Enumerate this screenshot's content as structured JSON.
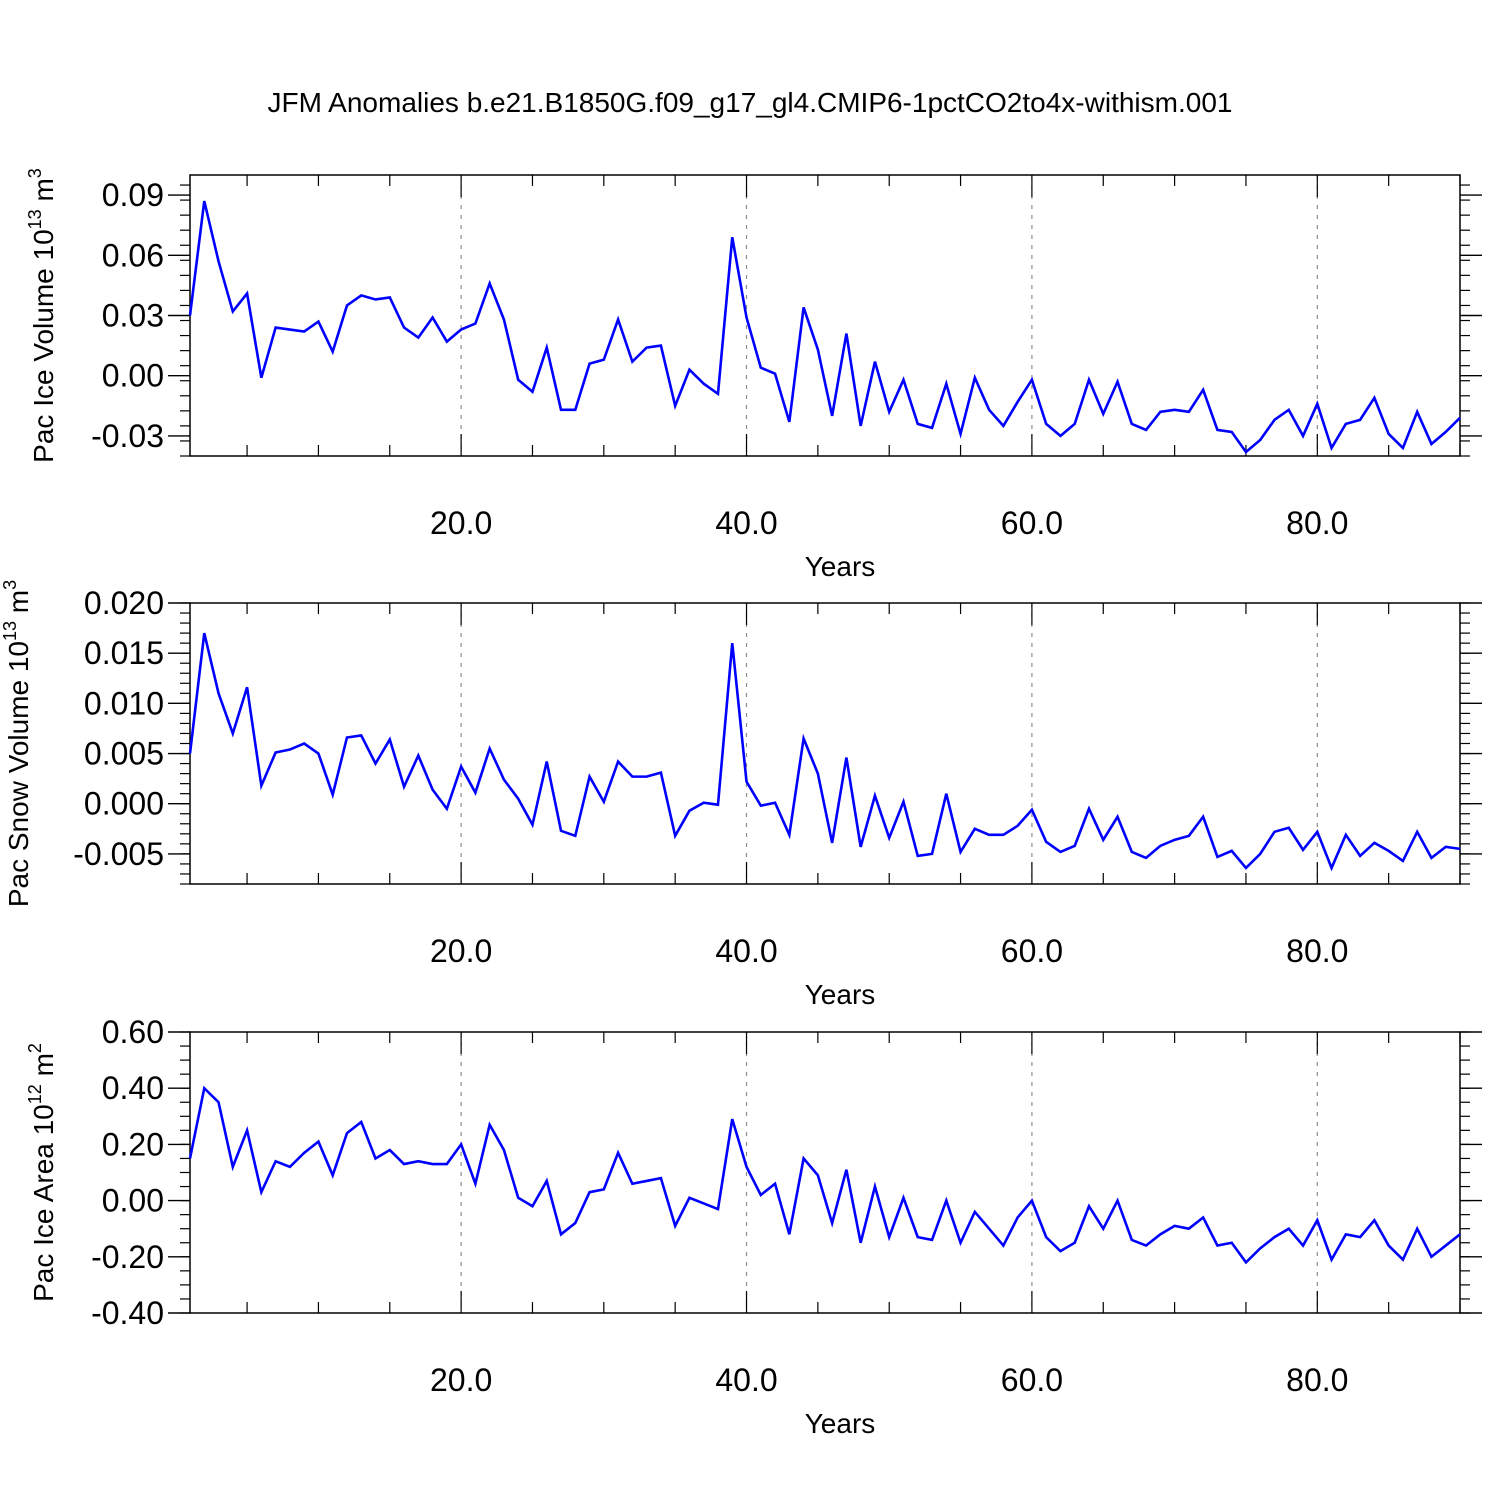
{
  "figure": {
    "title": "JFM Anomalies b.e21.B1850G.f09_g17_gl4.CMIP6-1pctCO2to4x-withism.001"
  },
  "colors": {
    "line": "#0000ff",
    "axis": "#000000",
    "grid": "#8c8c8c"
  },
  "chart_data": [
    {
      "type": "line",
      "title": "",
      "xlabel": "Years",
      "ylabel": "Pac Ice Volume 10",
      "ylabel_exp": "13",
      "ylabel_unit": " m",
      "ylabel_unit_exp": "3",
      "xlim": [
        1,
        90
      ],
      "ylim": [
        -0.04,
        0.1
      ],
      "x_ticks": [
        20,
        40,
        60,
        80
      ],
      "x_tick_labels": [
        "20.0",
        "40.0",
        "60.0",
        "80.0"
      ],
      "y_ticks": [
        -0.03,
        0,
        0.03,
        0.06,
        0.09
      ],
      "y_tick_labels": [
        "-0.03",
        "0.00",
        "0.03",
        "0.06",
        "0.09"
      ],
      "y_minor_step": 0.0075,
      "grid": "vertical dashed at x ticks",
      "series": [
        {
          "x": [
            1,
            2,
            3,
            4,
            5,
            6,
            7,
            8,
            9,
            10,
            11,
            12,
            13,
            14,
            15,
            16,
            17,
            18,
            19,
            20,
            21,
            22,
            23,
            24,
            25,
            26,
            27,
            28,
            29,
            30,
            31,
            32,
            33,
            34,
            35,
            36,
            37,
            38,
            39,
            40,
            41,
            42,
            43,
            44,
            45,
            46,
            47,
            48,
            49,
            50,
            51,
            52,
            53,
            54,
            55,
            56,
            57,
            58,
            59,
            60,
            61,
            62,
            63,
            64,
            65,
            66,
            67,
            68,
            69,
            70,
            71,
            72,
            73,
            74,
            75,
            76,
            77,
            78,
            79,
            80,
            81,
            82,
            83,
            84,
            85,
            86,
            87,
            88,
            89,
            90
          ],
          "values": [
            0.03,
            0.087,
            0.057,
            0.032,
            0.041,
            -0.001,
            0.024,
            0.023,
            0.022,
            0.027,
            0.012,
            0.035,
            0.04,
            0.038,
            0.039,
            0.024,
            0.019,
            0.029,
            0.017,
            0.023,
            0.026,
            0.046,
            0.028,
            -0.002,
            -0.008,
            0.014,
            -0.017,
            -0.017,
            0.006,
            0.008,
            0.028,
            0.007,
            0.014,
            0.015,
            -0.015,
            0.003,
            -0.004,
            -0.009,
            0.069,
            0.029,
            0.004,
            0.001,
            -0.023,
            0.034,
            0.013,
            -0.02,
            0.021,
            -0.025,
            0.007,
            -0.018,
            -0.002,
            -0.024,
            -0.026,
            -0.004,
            -0.029,
            -0.001,
            -0.017,
            -0.025,
            -0.013,
            -0.002,
            -0.024,
            -0.03,
            -0.024,
            -0.002,
            -0.019,
            -0.003,
            -0.024,
            -0.027,
            -0.018,
            -0.017,
            -0.018,
            -0.007,
            -0.027,
            -0.028,
            -0.038,
            -0.032,
            -0.022,
            -0.017,
            -0.03,
            -0.014,
            -0.036,
            -0.024,
            -0.022,
            -0.011,
            -0.029,
            -0.036,
            -0.018,
            -0.034,
            -0.028,
            -0.021
          ]
        }
      ]
    },
    {
      "type": "line",
      "title": "",
      "xlabel": "Years",
      "ylabel": "Pac Snow Volume 10",
      "ylabel_exp": "13",
      "ylabel_unit": " m",
      "ylabel_unit_exp": "3",
      "xlim": [
        1,
        90
      ],
      "ylim": [
        -0.008,
        0.02
      ],
      "x_ticks": [
        20,
        40,
        60,
        80
      ],
      "x_tick_labels": [
        "20.0",
        "40.0",
        "60.0",
        "80.0"
      ],
      "y_ticks": [
        -0.005,
        0,
        0.005,
        0.01,
        0.015,
        0.02
      ],
      "y_tick_labels": [
        "-0.005",
        "0.000",
        "0.005",
        "0.010",
        "0.015",
        "0.020"
      ],
      "y_minor_step": 0.001,
      "grid": "vertical dashed at x ticks",
      "series": [
        {
          "x": [
            1,
            2,
            3,
            4,
            5,
            6,
            7,
            8,
            9,
            10,
            11,
            12,
            13,
            14,
            15,
            16,
            17,
            18,
            19,
            20,
            21,
            22,
            23,
            24,
            25,
            26,
            27,
            28,
            29,
            30,
            31,
            32,
            33,
            34,
            35,
            36,
            37,
            38,
            39,
            40,
            41,
            42,
            43,
            44,
            45,
            46,
            47,
            48,
            49,
            50,
            51,
            52,
            53,
            54,
            55,
            56,
            57,
            58,
            59,
            60,
            61,
            62,
            63,
            64,
            65,
            66,
            67,
            68,
            69,
            70,
            71,
            72,
            73,
            74,
            75,
            76,
            77,
            78,
            79,
            80,
            81,
            82,
            83,
            84,
            85,
            86,
            87,
            88,
            89,
            90
          ],
          "values": [
            0.005,
            0.017,
            0.011,
            0.007,
            0.0116,
            0.0018,
            0.0051,
            0.0054,
            0.006,
            0.005,
            0.0009,
            0.0066,
            0.0068,
            0.004,
            0.0064,
            0.0017,
            0.0048,
            0.0014,
            -0.0005,
            0.0037,
            0.0011,
            0.0055,
            0.0024,
            0.0005,
            -0.0021,
            0.0042,
            -0.0027,
            -0.0032,
            0.0027,
            0.0002,
            0.0042,
            0.0027,
            0.0027,
            0.0031,
            -0.0032,
            -0.0007,
            0.0001,
            -0.0001,
            0.016,
            0.0022,
            -0.0002,
            0.0001,
            -0.0031,
            0.0065,
            0.003,
            -0.0039,
            0.0046,
            -0.0043,
            0.0008,
            -0.0034,
            0.0002,
            -0.0052,
            -0.005,
            0.001,
            -0.0048,
            -0.0025,
            -0.0031,
            -0.0031,
            -0.0022,
            -0.0006,
            -0.0038,
            -0.0048,
            -0.0042,
            -0.0005,
            -0.0036,
            -0.0013,
            -0.0048,
            -0.0054,
            -0.0042,
            -0.0036,
            -0.0032,
            -0.0013,
            -0.0053,
            -0.0047,
            -0.0064,
            -0.005,
            -0.0028,
            -0.0024,
            -0.0046,
            -0.0028,
            -0.0064,
            -0.0031,
            -0.0052,
            -0.0039,
            -0.0047,
            -0.0057,
            -0.0028,
            -0.0054,
            -0.0043,
            -0.0045
          ]
        }
      ]
    },
    {
      "type": "line",
      "title": "",
      "xlabel": "Years",
      "ylabel": "Pac Ice Area 10",
      "ylabel_exp": "12",
      "ylabel_unit": " m",
      "ylabel_unit_exp": "2",
      "xlim": [
        1,
        90
      ],
      "ylim": [
        -0.4,
        0.6
      ],
      "x_ticks": [
        20,
        40,
        60,
        80
      ],
      "x_tick_labels": [
        "20.0",
        "40.0",
        "60.0",
        "80.0"
      ],
      "y_ticks": [
        -0.4,
        -0.2,
        0,
        0.2,
        0.4,
        0.6
      ],
      "y_tick_labels": [
        "-0.40",
        "-0.20",
        "0.00",
        "0.20",
        "0.40",
        "0.60"
      ],
      "y_minor_step": 0.05,
      "grid": "vertical dashed at x ticks",
      "series": [
        {
          "x": [
            1,
            2,
            3,
            4,
            5,
            6,
            7,
            8,
            9,
            10,
            11,
            12,
            13,
            14,
            15,
            16,
            17,
            18,
            19,
            20,
            21,
            22,
            23,
            24,
            25,
            26,
            27,
            28,
            29,
            30,
            31,
            32,
            33,
            34,
            35,
            36,
            37,
            38,
            39,
            40,
            41,
            42,
            43,
            44,
            45,
            46,
            47,
            48,
            49,
            50,
            51,
            52,
            53,
            54,
            55,
            56,
            57,
            58,
            59,
            60,
            61,
            62,
            63,
            64,
            65,
            66,
            67,
            68,
            69,
            70,
            71,
            72,
            73,
            74,
            75,
            76,
            77,
            78,
            79,
            80,
            81,
            82,
            83,
            84,
            85,
            86,
            87,
            88,
            89,
            90
          ],
          "values": [
            0.15,
            0.4,
            0.35,
            0.12,
            0.25,
            0.03,
            0.14,
            0.12,
            0.17,
            0.21,
            0.09,
            0.24,
            0.28,
            0.15,
            0.18,
            0.13,
            0.14,
            0.13,
            0.13,
            0.2,
            0.06,
            0.27,
            0.18,
            0.01,
            -0.02,
            0.07,
            -0.12,
            -0.08,
            0.03,
            0.04,
            0.17,
            0.06,
            0.07,
            0.08,
            -0.09,
            0.01,
            -0.01,
            -0.03,
            0.29,
            0.12,
            0.02,
            0.06,
            -0.12,
            0.15,
            0.09,
            -0.08,
            0.11,
            -0.15,
            0.05,
            -0.13,
            0.01,
            -0.13,
            -0.14,
            0.0,
            -0.15,
            -0.04,
            -0.1,
            -0.16,
            -0.06,
            0.0,
            -0.13,
            -0.18,
            -0.15,
            -0.02,
            -0.1,
            0.0,
            -0.14,
            -0.16,
            -0.12,
            -0.09,
            -0.1,
            -0.06,
            -0.16,
            -0.15,
            -0.22,
            -0.17,
            -0.13,
            -0.1,
            -0.16,
            -0.07,
            -0.21,
            -0.12,
            -0.13,
            -0.07,
            -0.16,
            -0.21,
            -0.1,
            -0.2,
            -0.16,
            -0.12
          ]
        }
      ]
    }
  ]
}
